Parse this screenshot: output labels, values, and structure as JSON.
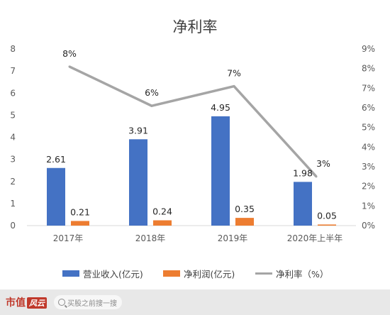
{
  "chart_data": {
    "type": "bar",
    "title": "净利率",
    "categories": [
      "2017年",
      "2018年",
      "2019年",
      "2020年上半年"
    ],
    "series": [
      {
        "name": "营业收入(亿元)",
        "type": "bar",
        "axis": "left",
        "color": "#4472c4",
        "values": [
          2.61,
          3.91,
          4.95,
          1.98
        ],
        "labels": [
          "2.61",
          "3.91",
          "4.95",
          "1.98"
        ]
      },
      {
        "name": "净利润(亿元)",
        "type": "bar",
        "axis": "left",
        "color": "#ed7d31",
        "values": [
          0.21,
          0.24,
          0.35,
          0.05
        ],
        "labels": [
          "0.21",
          "0.24",
          "0.35",
          "0.05"
        ]
      },
      {
        "name": "净利率（%）",
        "type": "line",
        "axis": "right",
        "color": "#a5a5a5",
        "values": [
          8.1,
          6.1,
          7.1,
          2.5
        ],
        "labels": [
          "8%",
          "6%",
          "7%",
          "3%"
        ]
      }
    ],
    "left_axis": {
      "min": 0,
      "max": 8,
      "ticks": [
        "0",
        "1",
        "2",
        "3",
        "4",
        "5",
        "6",
        "7",
        "8"
      ]
    },
    "right_axis": {
      "min": 0,
      "max": 9,
      "ticks": [
        "0%",
        "1%",
        "2%",
        "3%",
        "4%",
        "5%",
        "6%",
        "7%",
        "8%",
        "9%"
      ]
    },
    "grid": false,
    "legend_position": "bottom"
  },
  "footer": {
    "brand": "市值",
    "brand_badge": "风云",
    "search_placeholder": "买股之前搜一搜"
  },
  "colors": {
    "background": "#ffffff",
    "frame": "#d9d9d9",
    "brand": "#c0392b"
  }
}
